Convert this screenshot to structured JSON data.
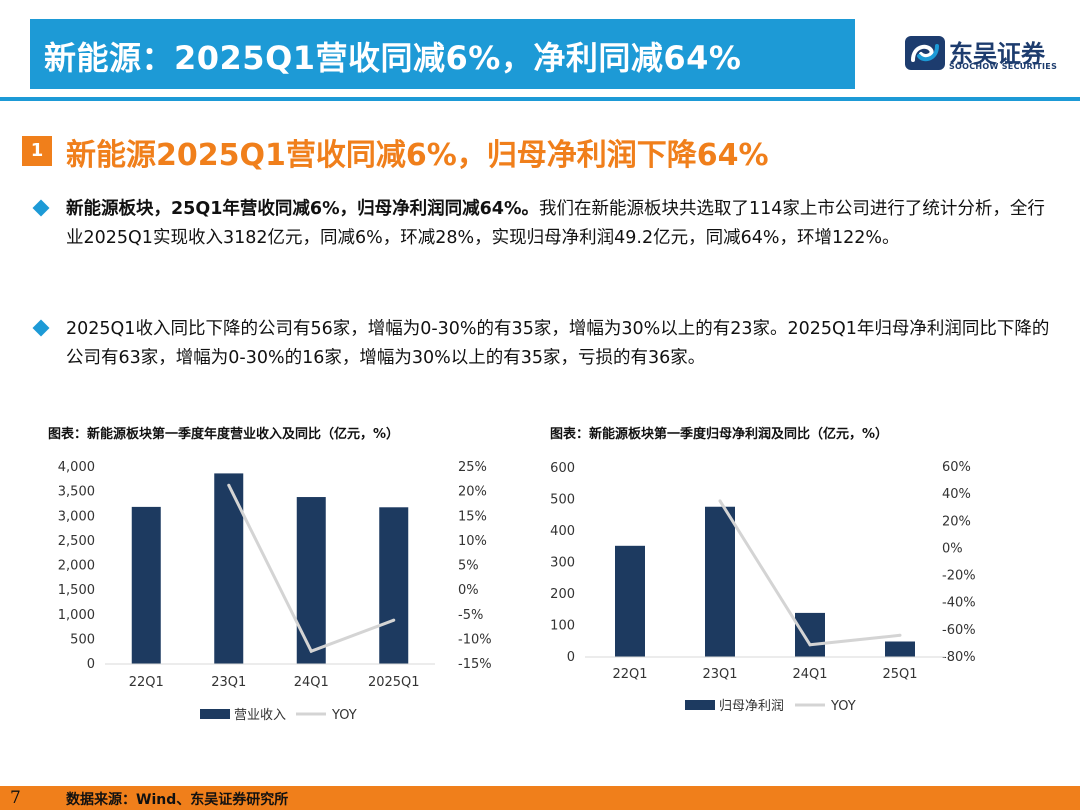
{
  "header": {
    "title": "新能源：2025Q1营收同减6%，净利同减64%",
    "logo_cn": "东吴证券",
    "logo_en": "SOOCHOW SECURITIES"
  },
  "section": {
    "number": "1",
    "title": "新能源2025Q1营收同减6%，归母净利润下降64%"
  },
  "paragraphs": [
    {
      "bold": "新能源板块，25Q1年营收同减6%，归母净利润同减64%。",
      "text": "我们在新能源板块共选取了114家上市公司进行了统计分析，全行业2025Q1实现收入3182亿元，同减6%，环减28%，实现归母净利润49.2亿元，同减64%，环增122%。"
    },
    {
      "bold": "",
      "text": "2025Q1收入同比下降的公司有56家，增幅为0-30%的有35家，增幅为30%以上的有23家。2025Q1年归母净利润同比下降的公司有63家，增幅为0-30%的16家，增幅为30%以上的有35家，亏损的有36家。"
    }
  ],
  "colors": {
    "accent_blue": "#1d9ad6",
    "accent_orange": "#f07f1b",
    "bar": "#1d3a60",
    "yoy_line": "#d4d4d4"
  },
  "chart_data": [
    {
      "type": "bar",
      "title": "图表：新能源板块第一季度年度营业收入及同比（亿元，%）",
      "categories": [
        "22Q1",
        "23Q1",
        "24Q1",
        "2025Q1"
      ],
      "series": [
        {
          "name": "营业收入",
          "type": "bar",
          "axis": "left",
          "values": [
            3190,
            3870,
            3390,
            3182
          ]
        },
        {
          "name": "YOY",
          "type": "line",
          "axis": "right",
          "values": [
            null,
            21.3,
            -12.4,
            -6.1
          ]
        }
      ],
      "ylim": [
        0,
        4000
      ],
      "yticks": [
        0,
        500,
        1000,
        1500,
        2000,
        2500,
        3000,
        3500,
        4000
      ],
      "ytick_labels": [
        "0",
        "500",
        "1,000",
        "1,500",
        "2,000",
        "2,500",
        "3,000",
        "3,500",
        "4,000"
      ],
      "y2lim": [
        -15,
        25
      ],
      "y2ticks": [
        -15,
        -10,
        -5,
        0,
        5,
        10,
        15,
        20,
        25
      ],
      "y2tick_labels": [
        "-15%",
        "-10%",
        "-5%",
        "0%",
        "5%",
        "10%",
        "15%",
        "20%",
        "25%"
      ],
      "legend": [
        "营业收入",
        "YOY"
      ]
    },
    {
      "type": "bar",
      "title": "图表：新能源板块第一季度归母净利润及同比（亿元，%）",
      "categories": [
        "22Q1",
        "23Q1",
        "24Q1",
        "25Q1"
      ],
      "series": [
        {
          "name": "归母净利润",
          "type": "bar",
          "axis": "left",
          "values": [
            353,
            477,
            140,
            49.2
          ]
        },
        {
          "name": "YOY",
          "type": "line",
          "axis": "right",
          "values": [
            null,
            35,
            -71,
            -64
          ]
        }
      ],
      "ylim": [
        0,
        600
      ],
      "yticks": [
        0,
        100,
        200,
        300,
        400,
        500,
        600
      ],
      "ytick_labels": [
        "0",
        "100",
        "200",
        "300",
        "400",
        "500",
        "600"
      ],
      "y2lim": [
        -80,
        60
      ],
      "y2ticks": [
        -80,
        -60,
        -40,
        -20,
        0,
        20,
        40,
        60
      ],
      "y2tick_labels": [
        "-80%",
        "-60%",
        "-40%",
        "-20%",
        "0%",
        "20%",
        "40%",
        "60%"
      ],
      "legend": [
        "归母净利润",
        "YOY"
      ]
    }
  ],
  "footer": {
    "page": "7",
    "source": "数据来源：Wind、东吴证券研究所"
  }
}
